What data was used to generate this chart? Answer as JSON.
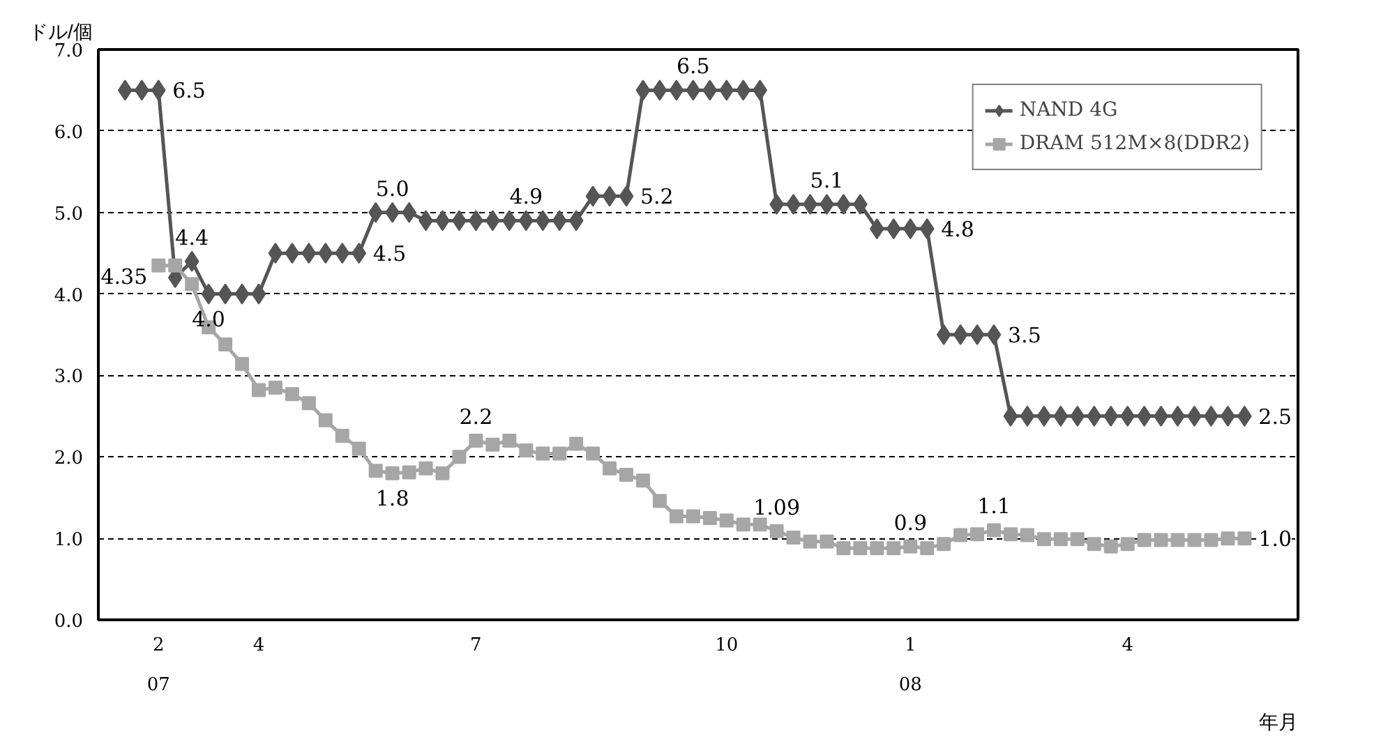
{
  "chart_data": {
    "type": "line",
    "ylabel": "ドル/個",
    "xlabel": "年月",
    "categories": [
      null,
      null,
      "2\n07",
      null,
      null,
      null,
      null,
      null,
      "4",
      null,
      null,
      null,
      null,
      null,
      null,
      null,
      null,
      null,
      null,
      null,
      null,
      "7",
      null,
      null,
      null,
      null,
      null,
      null,
      null,
      null,
      null,
      null,
      null,
      null,
      null,
      null,
      "10",
      null,
      null,
      null,
      null,
      null,
      null,
      null,
      null,
      null,
      null,
      "1\n08",
      null,
      null,
      null,
      null,
      null,
      null,
      null,
      null,
      null,
      null,
      null,
      null,
      "4",
      null,
      null,
      null,
      null,
      null,
      null,
      null
    ],
    "series": [
      {
        "name": "NAND 4G",
        "color": "#555555",
        "marker": "diamond",
        "values": [
          6.5,
          6.5,
          6.5,
          4.2,
          4.4,
          4.0,
          4.0,
          4.0,
          4.0,
          4.5,
          4.5,
          4.5,
          4.5,
          4.5,
          4.5,
          5.0,
          5.0,
          5.0,
          4.9,
          4.9,
          4.9,
          4.9,
          4.9,
          4.9,
          4.9,
          4.9,
          4.9,
          4.9,
          5.2,
          5.2,
          5.2,
          6.5,
          6.5,
          6.5,
          6.5,
          6.5,
          6.5,
          6.5,
          6.5,
          5.1,
          5.1,
          5.1,
          5.1,
          5.1,
          5.1,
          4.8,
          4.8,
          4.8,
          4.8,
          3.5,
          3.5,
          3.5,
          3.5,
          2.5,
          2.5,
          2.5,
          2.5,
          2.5,
          2.5,
          2.5,
          2.5,
          2.5,
          2.5,
          2.5,
          2.5,
          2.5,
          2.5,
          2.5
        ],
        "value_labels": [
          null,
          null,
          "6.5",
          null,
          "4.4",
          "4.0",
          null,
          null,
          null,
          null,
          null,
          null,
          null,
          null,
          "4.5",
          null,
          "5.0",
          null,
          null,
          null,
          null,
          null,
          null,
          null,
          "4.9",
          null,
          null,
          null,
          null,
          null,
          "5.2",
          null,
          null,
          null,
          "6.5",
          null,
          null,
          null,
          null,
          null,
          null,
          null,
          "5.1",
          null,
          null,
          null,
          null,
          null,
          "4.8",
          null,
          null,
          null,
          "3.5",
          null,
          null,
          null,
          null,
          null,
          null,
          null,
          null,
          null,
          null,
          null,
          null,
          null,
          null,
          "2.5"
        ]
      },
      {
        "name": "DRAM 512M×8(DDR2)",
        "color": "#a6a6a6",
        "marker": "square",
        "values": [
          null,
          null,
          4.35,
          4.35,
          4.12,
          3.59,
          3.38,
          3.14,
          2.82,
          2.85,
          2.77,
          2.66,
          2.45,
          2.26,
          2.1,
          1.83,
          1.8,
          1.81,
          1.86,
          1.8,
          2.0,
          2.2,
          2.15,
          2.2,
          2.08,
          2.04,
          2.04,
          2.16,
          2.04,
          1.86,
          1.78,
          1.71,
          1.46,
          1.27,
          1.27,
          1.25,
          1.22,
          1.17,
          1.17,
          1.09,
          1.01,
          0.96,
          0.96,
          0.88,
          0.88,
          0.88,
          0.88,
          0.9,
          0.88,
          0.93,
          1.04,
          1.05,
          1.1,
          1.05,
          1.04,
          0.99,
          0.99,
          0.99,
          0.93,
          0.9,
          0.93,
          0.98,
          0.98,
          0.98,
          0.98,
          0.98,
          1.0,
          1.0
        ],
        "value_labels": [
          null,
          null,
          "4.35",
          null,
          null,
          null,
          null,
          null,
          null,
          null,
          null,
          null,
          null,
          null,
          null,
          null,
          "1.8",
          null,
          null,
          null,
          null,
          "2.2",
          null,
          null,
          null,
          null,
          null,
          null,
          null,
          null,
          null,
          null,
          null,
          null,
          null,
          null,
          null,
          null,
          null,
          "1.09",
          null,
          null,
          null,
          null,
          null,
          null,
          null,
          "0.9",
          null,
          null,
          null,
          null,
          "1.1",
          null,
          null,
          null,
          null,
          null,
          null,
          null,
          null,
          null,
          null,
          null,
          null,
          null,
          null,
          "1.0"
        ]
      }
    ],
    "ylim": [
      0,
      7
    ],
    "yticks": [
      {
        "value": 0,
        "label": "0.0"
      },
      {
        "value": 1,
        "label": "1.0"
      },
      {
        "value": 2,
        "label": "2.0"
      },
      {
        "value": 3,
        "label": "3.0"
      },
      {
        "value": 4,
        "label": "4.0"
      },
      {
        "value": 5,
        "label": "5.0"
      },
      {
        "value": 6,
        "label": "6.0"
      },
      {
        "value": 7,
        "label": "7.0"
      }
    ],
    "grid": "y",
    "line_style": "solid",
    "legend": "top right"
  }
}
